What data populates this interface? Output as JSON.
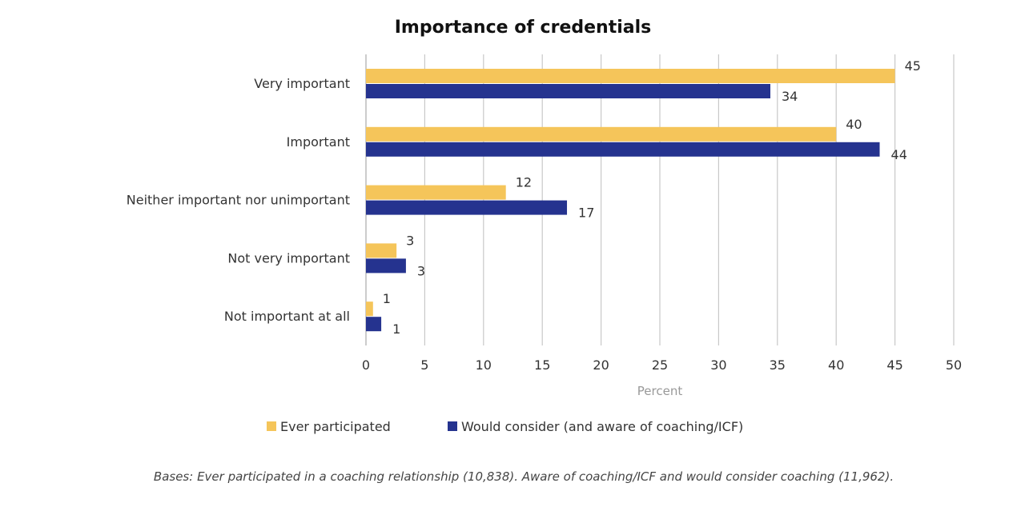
{
  "chart_data": {
    "type": "bar",
    "orientation": "horizontal",
    "title": "Importance of credentials",
    "categories": [
      "Very important",
      "Important",
      "Neither important nor unimportant",
      "Not very important",
      "Not important at all"
    ],
    "series": [
      {
        "name": "Ever participated",
        "color": "#F5C55A",
        "values": [
          45,
          40,
          11.9,
          2.6,
          0.6
        ],
        "labels": [
          "45",
          "40",
          "12",
          "3",
          "1"
        ]
      },
      {
        "name": "Would consider (and aware of coaching/ICF)",
        "color": "#25338F",
        "values": [
          34.4,
          43.7,
          17.1,
          3.4,
          1.3
        ],
        "labels": [
          "34",
          "44",
          "17",
          "3",
          "1"
        ]
      }
    ],
    "xlabel": "Percent",
    "xlim": [
      0,
      50
    ],
    "xticks": [
      "0",
      "5",
      "10",
      "15",
      "20",
      "25",
      "30",
      "35",
      "40",
      "45",
      "50"
    ],
    "grid": "vertical",
    "legend": "bottom",
    "footnote": "Bases: Ever participated in a coaching relationship (10,838). Aware of coaching/ICF and would consider coaching (11,962)."
  }
}
